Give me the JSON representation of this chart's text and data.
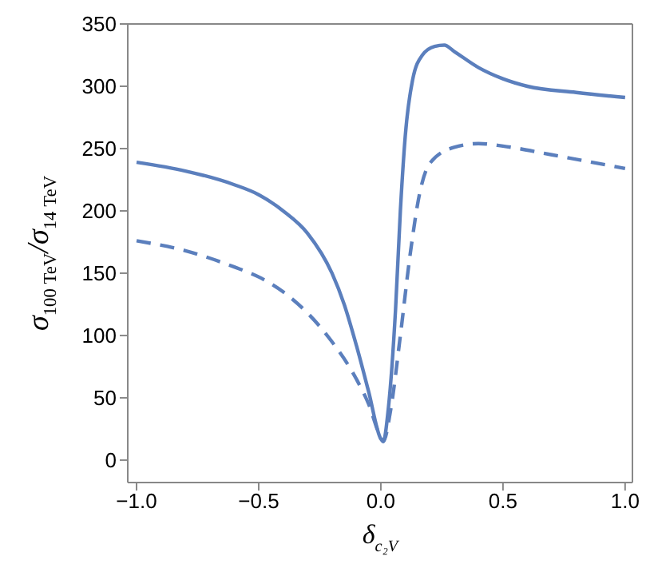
{
  "chart_data": {
    "type": "line",
    "xlabel": "δ$_{c₂V}$",
    "ylabel": "σ$_{100 TeV}$/σ$_{14 TeV}$",
    "xlim": [
      -1.036,
      1.03
    ],
    "xticks": [
      {
        "value": -1,
        "label": "−1.0"
      },
      {
        "value": -0.5,
        "label": "−0.5"
      },
      {
        "value": 0,
        "label": "0.0"
      },
      {
        "value": 0.5,
        "label": "0.5"
      },
      {
        "value": 1,
        "label": "1.0"
      }
    ],
    "ylim": [
      -18,
      350
    ],
    "yticks": [
      0,
      50,
      100,
      150,
      200,
      250,
      300,
      350
    ],
    "marker": "none",
    "series": [
      {
        "color": "#5b7fbd",
        "line_style": "solid",
        "x": [
          -1,
          -0.8,
          -0.6,
          -0.5,
          -0.4,
          -0.3,
          -0.2,
          -0.15,
          -0.1,
          -0.05,
          0,
          0.01,
          0.03,
          0.06,
          0.08,
          0.1,
          0.13,
          0.17,
          0.22,
          0.26,
          0.3,
          0.4,
          0.5,
          0.6,
          0.8,
          1
        ],
        "values": [
          239,
          232,
          221,
          213,
          200,
          182,
          150,
          125,
          92,
          55,
          17,
          15,
          40,
          120,
          200,
          260,
          305,
          325,
          332,
          333,
          328,
          315,
          306,
          300,
          295,
          291
        ]
      },
      {
        "color": "#5b7fbd",
        "line_style": "dashed",
        "x": [
          -1,
          -0.8,
          -0.6,
          -0.5,
          -0.4,
          -0.3,
          -0.2,
          -0.1,
          -0.05,
          0,
          0.01,
          0.04,
          0.08,
          0.12,
          0.16,
          0.2,
          0.3,
          0.4,
          0.5,
          0.7,
          1
        ],
        "values": [
          176,
          168,
          155,
          147,
          135,
          118,
          95,
          65,
          45,
          18,
          15,
          40,
          100,
          165,
          215,
          238,
          251,
          254,
          252,
          245,
          234
        ]
      }
    ]
  }
}
